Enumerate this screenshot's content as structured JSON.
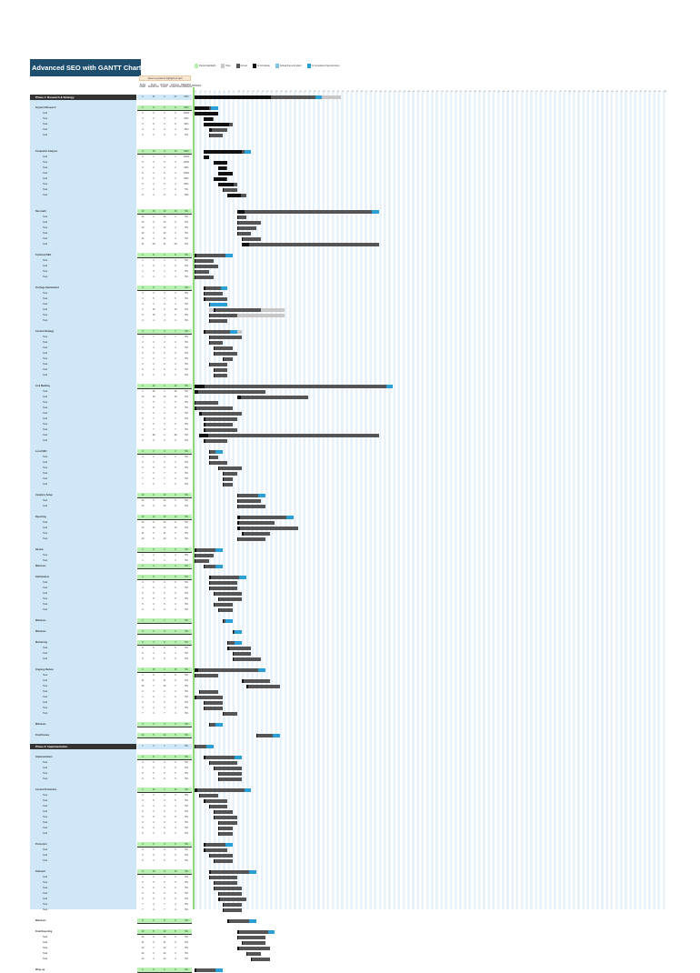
{
  "title": "Advanced SEO with GANTT Chart Planner",
  "legend": [
    {
      "label": "Period Highlight",
      "color": "#b7f0b0"
    },
    {
      "label": "Plan",
      "color": "#c8c8c8"
    },
    {
      "label": "Actual",
      "color": "#555555"
    },
    {
      "label": "% Complete",
      "color": "#111111"
    },
    {
      "label": "Actual (beyond plan)",
      "color": "#7cc3e8"
    },
    {
      "label": "% Complete (beyond plan)",
      "color": "#2a9fd6"
    }
  ],
  "note": "Select a period to highlight at right",
  "columns": [
    "PLAN START",
    "PLAN DURATION",
    "ACTUAL START",
    "ACTUAL DURATION",
    "PERCENT COMPLETE"
  ],
  "period_label": "PERIODS",
  "period_count": 100,
  "colors": {
    "title": "#1d4e6e",
    "left_panel": "#cfe7f7",
    "group": "#b7f0b0",
    "plan": "#c8c8c8",
    "actual": "#555555",
    "complete": "#111111",
    "beyond": "#2a9fd6"
  },
  "rows": [
    [
      "s",
      "Phase 1: Research & Strategy",
      1,
      31,
      1,
      27,
      "60%"
    ],
    [
      "b"
    ],
    [
      "g",
      "Keyword Research",
      1,
      5,
      1,
      5,
      "60%"
    ],
    [
      "t",
      "Task",
      1,
      5,
      1,
      5,
      "100%"
    ],
    [
      "t",
      "Task",
      3,
      2,
      3,
      2,
      "90%"
    ],
    [
      "t",
      "Task",
      3,
      6,
      3,
      6,
      "90%"
    ],
    [
      "t",
      "Task",
      4,
      4,
      4,
      4,
      "15%"
    ],
    [
      "t",
      "Task",
      4,
      3,
      4,
      3,
      "5%"
    ],
    [
      "b"
    ],
    [
      "b"
    ],
    [
      "g",
      "Competitor Analysis",
      3,
      10,
      3,
      10,
      "80%"
    ],
    [
      "t",
      "Task",
      3,
      1,
      3,
      1,
      "100%"
    ],
    [
      "t",
      "Task",
      5,
      3,
      5,
      3,
      "100%"
    ],
    [
      "t",
      "Task",
      6,
      2,
      6,
      2,
      "90%"
    ],
    [
      "t",
      "Task",
      6,
      3,
      6,
      3,
      "100%"
    ],
    [
      "t",
      "Task",
      5,
      3,
      5,
      3,
      "90%"
    ],
    [
      "t",
      "Task",
      6,
      4,
      6,
      4,
      "80%"
    ],
    [
      "t",
      "Task",
      7,
      3,
      7,
      3,
      "5%"
    ],
    [
      "t",
      "Task",
      8,
      4,
      8,
      4,
      "70%"
    ],
    [
      "b"
    ],
    [
      "b"
    ],
    [
      "g",
      "Site Audit",
      10,
      30,
      10,
      30,
      "5%"
    ],
    [
      "t",
      "Task",
      10,
      2,
      10,
      2,
      "5%"
    ],
    [
      "t",
      "Task",
      10,
      5,
      10,
      5,
      "5%"
    ],
    [
      "t",
      "Task",
      10,
      4,
      10,
      4,
      "5%"
    ],
    [
      "t",
      "Task",
      10,
      3,
      10,
      3,
      "5%"
    ],
    [
      "t",
      "Task",
      11,
      4,
      11,
      4,
      "5%"
    ],
    [
      "t",
      "Task",
      11,
      29,
      11,
      29,
      "5%"
    ],
    [
      "b"
    ],
    [
      "g",
      "Technical SEO",
      1,
      8,
      1,
      8,
      "5%"
    ],
    [
      "t",
      "Task",
      1,
      4,
      1,
      4,
      "5%"
    ],
    [
      "t",
      "Task",
      1,
      5,
      1,
      5,
      "5%"
    ],
    [
      "t",
      "Task",
      1,
      3,
      1,
      3,
      "5%"
    ],
    [
      "t",
      "Task",
      1,
      4,
      1,
      4,
      "5%"
    ],
    [
      "b"
    ],
    [
      "g",
      "On-Page Optimization",
      3,
      5,
      3,
      5,
      "5%"
    ],
    [
      "t",
      "Task",
      3,
      4,
      3,
      4,
      "5%"
    ],
    [
      "t",
      "Task",
      3,
      5,
      3,
      5,
      "5%"
    ],
    [
      "t",
      "Task",
      4,
      3,
      4,
      4,
      "5%"
    ],
    [
      "t",
      "Task",
      4,
      16,
      5,
      10,
      "5%"
    ],
    [
      "t",
      "Task",
      5,
      15,
      4,
      6,
      "5%"
    ],
    [
      "t",
      "Task",
      4,
      4,
      4,
      4,
      "5%"
    ],
    [
      "b"
    ],
    [
      "g",
      "Content Strategy",
      4,
      7,
      3,
      7,
      "5%"
    ],
    [
      "t",
      "Task",
      4,
      7,
      4,
      7,
      "5%"
    ],
    [
      "t",
      "Task",
      4,
      3,
      4,
      3,
      "5%"
    ],
    [
      "t",
      "Task",
      5,
      4,
      5,
      4,
      "5%"
    ],
    [
      "t",
      "Task",
      5,
      5,
      5,
      5,
      "5%"
    ],
    [
      "t",
      "Task",
      7,
      2,
      7,
      2,
      "5%"
    ],
    [
      "t",
      "Task",
      4,
      4,
      4,
      4,
      "5%"
    ],
    [
      "t",
      "Task",
      5,
      3,
      5,
      3,
      "5%"
    ],
    [
      "t",
      "Task",
      5,
      3,
      5,
      3,
      "5%"
    ],
    [
      "b"
    ],
    [
      "g",
      "Link Building",
      1,
      42,
      1,
      42,
      "5%"
    ],
    [
      "t",
      "Task",
      1,
      15,
      1,
      15,
      "5%"
    ],
    [
      "t",
      "Task",
      10,
      15,
      10,
      15,
      "5%"
    ],
    [
      "t",
      "Task",
      1,
      5,
      1,
      5,
      "5%"
    ],
    [
      "t",
      "Task",
      1,
      8,
      1,
      8,
      "5%"
    ],
    [
      "t",
      "Task",
      2,
      9,
      2,
      9,
      "5%"
    ],
    [
      "t",
      "Task",
      3,
      7,
      3,
      7,
      "5%"
    ],
    [
      "t",
      "Task",
      3,
      6,
      3,
      6,
      "5%"
    ],
    [
      "t",
      "Task",
      3,
      7,
      3,
      7,
      "5%"
    ],
    [
      "t",
      "Task",
      2,
      38,
      2,
      38,
      "5%"
    ],
    [
      "t",
      "Task",
      3,
      5,
      3,
      5,
      "5%"
    ],
    [
      "b"
    ],
    [
      "g",
      "Local SEO",
      4,
      3,
      4,
      3,
      "5%"
    ],
    [
      "t",
      "Task",
      4,
      2,
      4,
      2,
      "5%"
    ],
    [
      "t",
      "Task",
      4,
      4,
      4,
      4,
      "5%"
    ],
    [
      "t",
      "Task",
      6,
      5,
      6,
      5,
      "5%"
    ],
    [
      "t",
      "Task",
      7,
      3,
      7,
      3,
      "5%"
    ],
    [
      "t",
      "Task",
      7,
      2,
      7,
      2,
      "5%"
    ],
    [
      "t",
      "Task",
      7,
      2,
      7,
      2,
      "5%"
    ],
    [
      "b"
    ],
    [
      "g",
      "Analytics Setup",
      10,
      6,
      10,
      6,
      "5%"
    ],
    [
      "t",
      "Task",
      10,
      5,
      10,
      5,
      "5%"
    ],
    [
      "t",
      "Task",
      10,
      6,
      10,
      6,
      "5%"
    ],
    [
      "b"
    ],
    [
      "g",
      "Reporting",
      10,
      12,
      10,
      12,
      "5%"
    ],
    [
      "t",
      "Task",
      10,
      8,
      10,
      8,
      "5%"
    ],
    [
      "t",
      "Task",
      10,
      13,
      10,
      13,
      "5%"
    ],
    [
      "t",
      "Task",
      11,
      6,
      11,
      6,
      "5%"
    ],
    [
      "t",
      "Task",
      10,
      6,
      10,
      6,
      "5%"
    ],
    [
      "b"
    ],
    [
      "g",
      "Review",
      1,
      6,
      1,
      6,
      "5%"
    ],
    [
      "t",
      "Task",
      1,
      4,
      1,
      4,
      "5%"
    ],
    [
      "t",
      "Task",
      1,
      3,
      1,
      3,
      "5%"
    ],
    [
      "g",
      "Milestone",
      3,
      4,
      3,
      4,
      "5%"
    ],
    [
      "b"
    ],
    [
      "g",
      "Optimization",
      4,
      8,
      4,
      8,
      "5%"
    ],
    [
      "t",
      "Task",
      4,
      6,
      4,
      6,
      "5%"
    ],
    [
      "t",
      "Task",
      4,
      6,
      4,
      6,
      "5%"
    ],
    [
      "t",
      "Task",
      5,
      6,
      5,
      6,
      "5%"
    ],
    [
      "t",
      "Task",
      6,
      5,
      6,
      5,
      "5%"
    ],
    [
      "t",
      "Task",
      5,
      4,
      5,
      4,
      "5%"
    ],
    [
      "t",
      "Task",
      6,
      3,
      6,
      3,
      "5%"
    ],
    [
      "b"
    ],
    [
      "g",
      "Milestone",
      7,
      2,
      7,
      2,
      "5%"
    ],
    [
      "b"
    ],
    [
      "g",
      "Milestone",
      9,
      2,
      9,
      2,
      "5%"
    ],
    [
      "b"
    ],
    [
      "g",
      "Monitoring",
      8,
      3,
      8,
      3,
      "5%"
    ],
    [
      "t",
      "Task",
      8,
      5,
      8,
      5,
      "5%"
    ],
    [
      "t",
      "Task",
      9,
      4,
      9,
      4,
      "5%"
    ],
    [
      "t",
      "Task",
      9,
      6,
      9,
      6,
      "5%"
    ],
    [
      "b"
    ],
    [
      "g",
      "Ongoing Review",
      1,
      15,
      1,
      15,
      "5%"
    ],
    [
      "t",
      "Task",
      1,
      5,
      1,
      5,
      "5%"
    ],
    [
      "t",
      "Task",
      11,
      6,
      11,
      6,
      "5%"
    ],
    [
      "t",
      "Task",
      12,
      7,
      12,
      7,
      "5%"
    ],
    [
      "t",
      "Task",
      2,
      4,
      2,
      4,
      "5%"
    ],
    [
      "t",
      "Task",
      1,
      6,
      1,
      6,
      "5%"
    ],
    [
      "t",
      "Task",
      3,
      4,
      3,
      4,
      "5%"
    ],
    [
      "t",
      "Task",
      3,
      4,
      3,
      4,
      "5%"
    ],
    [
      "t",
      "Task",
      7,
      3,
      7,
      3,
      "5%"
    ],
    [
      "b"
    ],
    [
      "g",
      "Milestone",
      4,
      3,
      4,
      3,
      "5%"
    ],
    [
      "b"
    ],
    [
      "g",
      "Final Review",
      14,
      5,
      14,
      5,
      "5%"
    ],
    [
      "b"
    ],
    [
      "s",
      "Phase 2: Implementation",
      1,
      4,
      1,
      4,
      "5%"
    ],
    [
      "b"
    ],
    [
      "g",
      "Implementation",
      3,
      8,
      3,
      8,
      "5%"
    ],
    [
      "t",
      "Task",
      4,
      6,
      4,
      6,
      "5%"
    ],
    [
      "t",
      "Task",
      5,
      6,
      5,
      6,
      "5%"
    ],
    [
      "t",
      "Task",
      6,
      5,
      6,
      5,
      "5%"
    ],
    [
      "t",
      "Task",
      6,
      5,
      6,
      5,
      "5%"
    ],
    [
      "b"
    ],
    [
      "g",
      "Content Production",
      1,
      12,
      1,
      12,
      "5%"
    ],
    [
      "t",
      "Task",
      2,
      4,
      2,
      4,
      "5%"
    ],
    [
      "t",
      "Task",
      3,
      5,
      3,
      5,
      "5%"
    ],
    [
      "t",
      "Task",
      4,
      4,
      4,
      4,
      "5%"
    ],
    [
      "t",
      "Task",
      5,
      4,
      5,
      4,
      "5%"
    ],
    [
      "t",
      "Task",
      5,
      5,
      5,
      5,
      "5%"
    ],
    [
      "t",
      "Task",
      6,
      4,
      6,
      4,
      "5%"
    ],
    [
      "t",
      "Task",
      6,
      3,
      6,
      3,
      "5%"
    ],
    [
      "t",
      "Task",
      6,
      3,
      6,
      3,
      "5%"
    ],
    [
      "b"
    ],
    [
      "g",
      "Promotion",
      3,
      6,
      3,
      6,
      "5%"
    ],
    [
      "t",
      "Task",
      3,
      5,
      3,
      5,
      "5%"
    ],
    [
      "t",
      "Task",
      4,
      5,
      4,
      5,
      "5%"
    ],
    [
      "t",
      "Task",
      5,
      4,
      5,
      4,
      "5%"
    ],
    [
      "b"
    ],
    [
      "g",
      "Outreach",
      4,
      10,
      4,
      10,
      "5%"
    ],
    [
      "t",
      "Task",
      4,
      6,
      4,
      6,
      "5%"
    ],
    [
      "t",
      "Task",
      5,
      5,
      5,
      5,
      "5%"
    ],
    [
      "t",
      "Task",
      5,
      6,
      5,
      6,
      "5%"
    ],
    [
      "t",
      "Task",
      6,
      5,
      6,
      5,
      "5%"
    ],
    [
      "t",
      "Task",
      6,
      6,
      6,
      6,
      "5%"
    ],
    [
      "t",
      "Task",
      7,
      4,
      7,
      4,
      "5%"
    ],
    [
      "t",
      "Task",
      7,
      4,
      7,
      4,
      "5%"
    ],
    [
      "b"
    ],
    [
      "g",
      "Milestone",
      8,
      6,
      8,
      6,
      "5%"
    ],
    [
      "b"
    ],
    [
      "g",
      "Final Reporting",
      10,
      8,
      10,
      8,
      "5%"
    ],
    [
      "t",
      "Task",
      10,
      6,
      10,
      6,
      "5%"
    ],
    [
      "t",
      "Task",
      11,
      5,
      11,
      5,
      "5%"
    ],
    [
      "t",
      "Task",
      10,
      7,
      10,
      7,
      "5%"
    ],
    [
      "t",
      "Task",
      12,
      3,
      12,
      3,
      "5%"
    ],
    [
      "t",
      "Task",
      13,
      4,
      13,
      4,
      "5%"
    ],
    [
      "b"
    ],
    [
      "g",
      "Wrap-up",
      1,
      6,
      1,
      6,
      "5%"
    ]
  ]
}
